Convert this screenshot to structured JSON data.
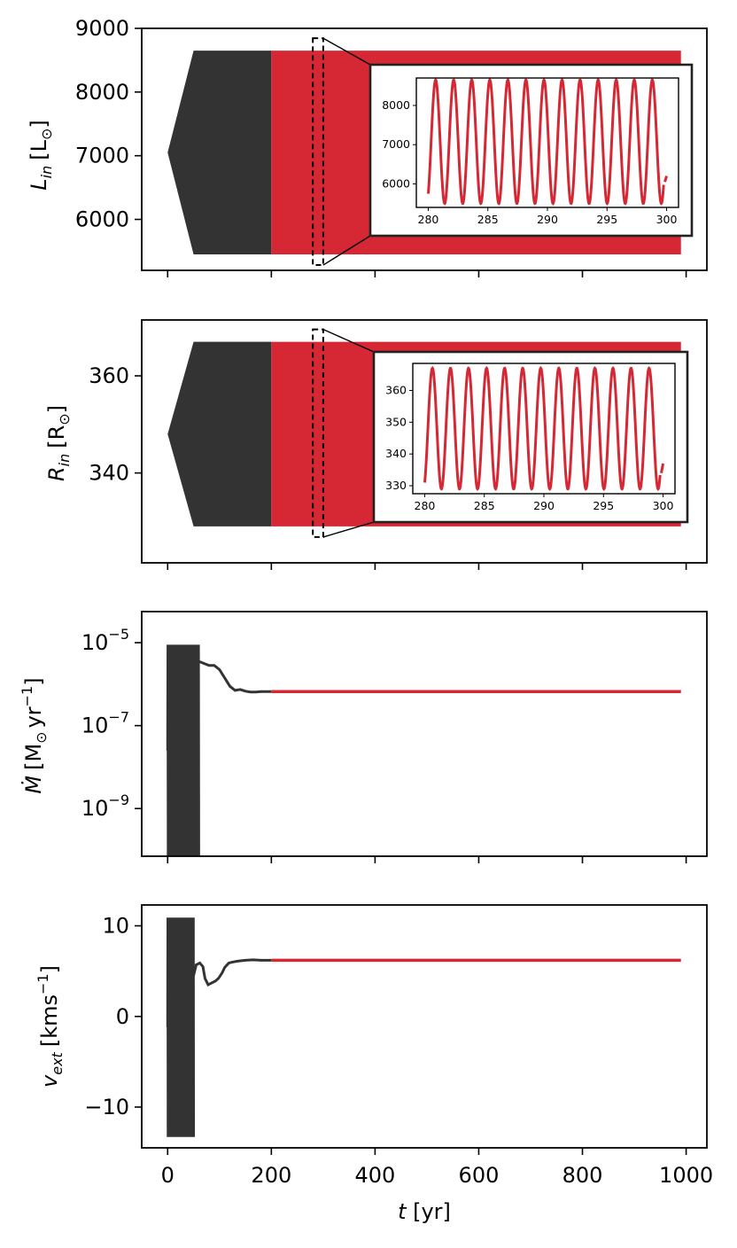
{
  "colors": {
    "early": "#333333",
    "late": "#d62834",
    "axis": "#000000"
  },
  "x_axis": {
    "ticks": [
      0,
      200,
      400,
      600,
      800,
      1000
    ],
    "tick_labels": [
      "0",
      "200",
      "400",
      "600",
      "800",
      "1000"
    ],
    "label_var": "t",
    "label_unit": " [yr]"
  },
  "chart_data": [
    {
      "type": "line",
      "panel": "L_in",
      "ylabel": {
        "var": "L",
        "sub": "in",
        "unit": "[L",
        "unit_sub": "⊙",
        "close": "]"
      },
      "xlim": [
        -50,
        1040
      ],
      "ylim": [
        5200,
        9000
      ],
      "y_ticks": [
        6000,
        7000,
        8000,
        9000
      ],
      "y_tick_labels": [
        "6000",
        "7000",
        "8000",
        "9000"
      ],
      "series": [
        {
          "segment": "ramp",
          "x": [
            0,
            50
          ],
          "center": 7050,
          "amp_start": 0,
          "amp_end": 1600
        },
        {
          "segment": "early",
          "x": [
            50,
            200
          ],
          "min": 5450,
          "max": 8650
        },
        {
          "segment": "late",
          "x": [
            200,
            990
          ],
          "min": 5450,
          "max": 8650
        }
      ],
      "zoom_box": {
        "x": [
          280,
          300
        ]
      },
      "inset": {
        "xlim": [
          279,
          301
        ],
        "ylim": [
          5400,
          8700
        ],
        "x_ticks": [
          280,
          285,
          290,
          295,
          300
        ],
        "x_tick_labels": [
          "280",
          "285",
          "290",
          "295",
          "300"
        ],
        "y_ticks": [
          6000,
          7000,
          8000
        ],
        "y_tick_labels": [
          "6000",
          "7000",
          "8000"
        ],
        "period": 1.515,
        "min": 5500,
        "max": 8650,
        "start": [
          280,
          5750
        ],
        "end": [
          300,
          6200
        ]
      }
    },
    {
      "type": "line",
      "panel": "R_in",
      "ylabel": {
        "var": "R",
        "sub": "in",
        "unit": "[R",
        "unit_sub": "⊙",
        "close": "]"
      },
      "xlim": [
        -50,
        1040
      ],
      "ylim": [
        321.5,
        371.5
      ],
      "y_ticks": [
        340,
        360
      ],
      "y_tick_labels": [
        "340",
        "360"
      ],
      "series": [
        {
          "segment": "ramp",
          "x": [
            0,
            50
          ],
          "center": 348,
          "amp_start": 0,
          "amp_end": 19
        },
        {
          "segment": "early",
          "x": [
            50,
            200
          ],
          "min": 329,
          "max": 367
        },
        {
          "segment": "late",
          "x": [
            200,
            990
          ],
          "min": 329,
          "max": 367
        }
      ],
      "zoom_box": {
        "x": [
          280,
          300
        ]
      },
      "inset": {
        "xlim": [
          279,
          301
        ],
        "ylim": [
          327.5,
          368.5
        ],
        "x_ticks": [
          280,
          285,
          290,
          295,
          300
        ],
        "x_tick_labels": [
          "280",
          "285",
          "290",
          "295",
          "300"
        ],
        "y_ticks": [
          330,
          340,
          350,
          360
        ],
        "y_tick_labels": [
          "330",
          "340",
          "350",
          "360"
        ],
        "period": 1.515,
        "min": 329,
        "max": 367,
        "start": [
          280,
          331
        ],
        "end": [
          300,
          337
        ]
      }
    },
    {
      "type": "line",
      "panel": "Mdot",
      "yscale": "log",
      "ylabel": {
        "var": "Ṁ",
        "unit": "[M",
        "unit_sub": "⊙",
        "unit_rest": "yr",
        "unit_sup": "−1",
        "close": "]"
      },
      "xlim": [
        -50,
        1040
      ],
      "ylim_log10": [
        -10.15,
        -4.25
      ],
      "y_ticks_log10": [
        -9,
        -7,
        -5
      ],
      "y_tick_labels": [
        {
          "base": "10",
          "exp": "−9"
        },
        {
          "base": "10",
          "exp": "−7"
        },
        {
          "base": "10",
          "exp": "−5"
        }
      ],
      "series": [
        {
          "segment": "early-oscillation",
          "x": [
            0,
            60
          ],
          "log10_min": -10.15,
          "log10_max": -5.05
        },
        {
          "segment": "early-settle",
          "x": [
            60,
            70,
            80,
            90,
            100,
            110,
            120,
            130,
            140,
            150,
            160,
            170,
            180,
            190,
            200
          ],
          "log10_y": [
            -5.45,
            -5.5,
            -5.55,
            -5.55,
            -5.65,
            -5.85,
            -6.05,
            -6.15,
            -6.13,
            -6.17,
            -6.19,
            -6.19,
            -6.18,
            -6.18,
            -6.18
          ]
        },
        {
          "segment": "late",
          "x": [
            200,
            990
          ],
          "log10_y": -6.18
        }
      ]
    },
    {
      "type": "line",
      "panel": "v_ext",
      "ylabel": {
        "var": "v",
        "sub": "ext",
        "unit": "[kms",
        "unit_sup": "−1",
        "close": "]"
      },
      "xlim": [
        -50,
        1040
      ],
      "ylim": [
        -14.5,
        12.3
      ],
      "y_ticks": [
        -10,
        0,
        10
      ],
      "y_tick_labels": [
        "−10",
        "0",
        "10"
      ],
      "series": [
        {
          "segment": "early-oscillation",
          "x": [
            0,
            50
          ],
          "min": -13.3,
          "max": 10.9
        },
        {
          "segment": "early-settle",
          "x": [
            50,
            55,
            62,
            68,
            72,
            78,
            85,
            92,
            98,
            105,
            110,
            118,
            125,
            135,
            150,
            165,
            180,
            200
          ],
          "y": [
            4.5,
            5.7,
            5.9,
            5.5,
            4.2,
            3.5,
            3.7,
            3.9,
            4.2,
            4.8,
            5.4,
            5.9,
            6.0,
            6.1,
            6.2,
            6.25,
            6.2,
            6.2
          ]
        },
        {
          "segment": "late",
          "x": [
            200,
            990
          ],
          "y": 6.2
        }
      ]
    }
  ]
}
